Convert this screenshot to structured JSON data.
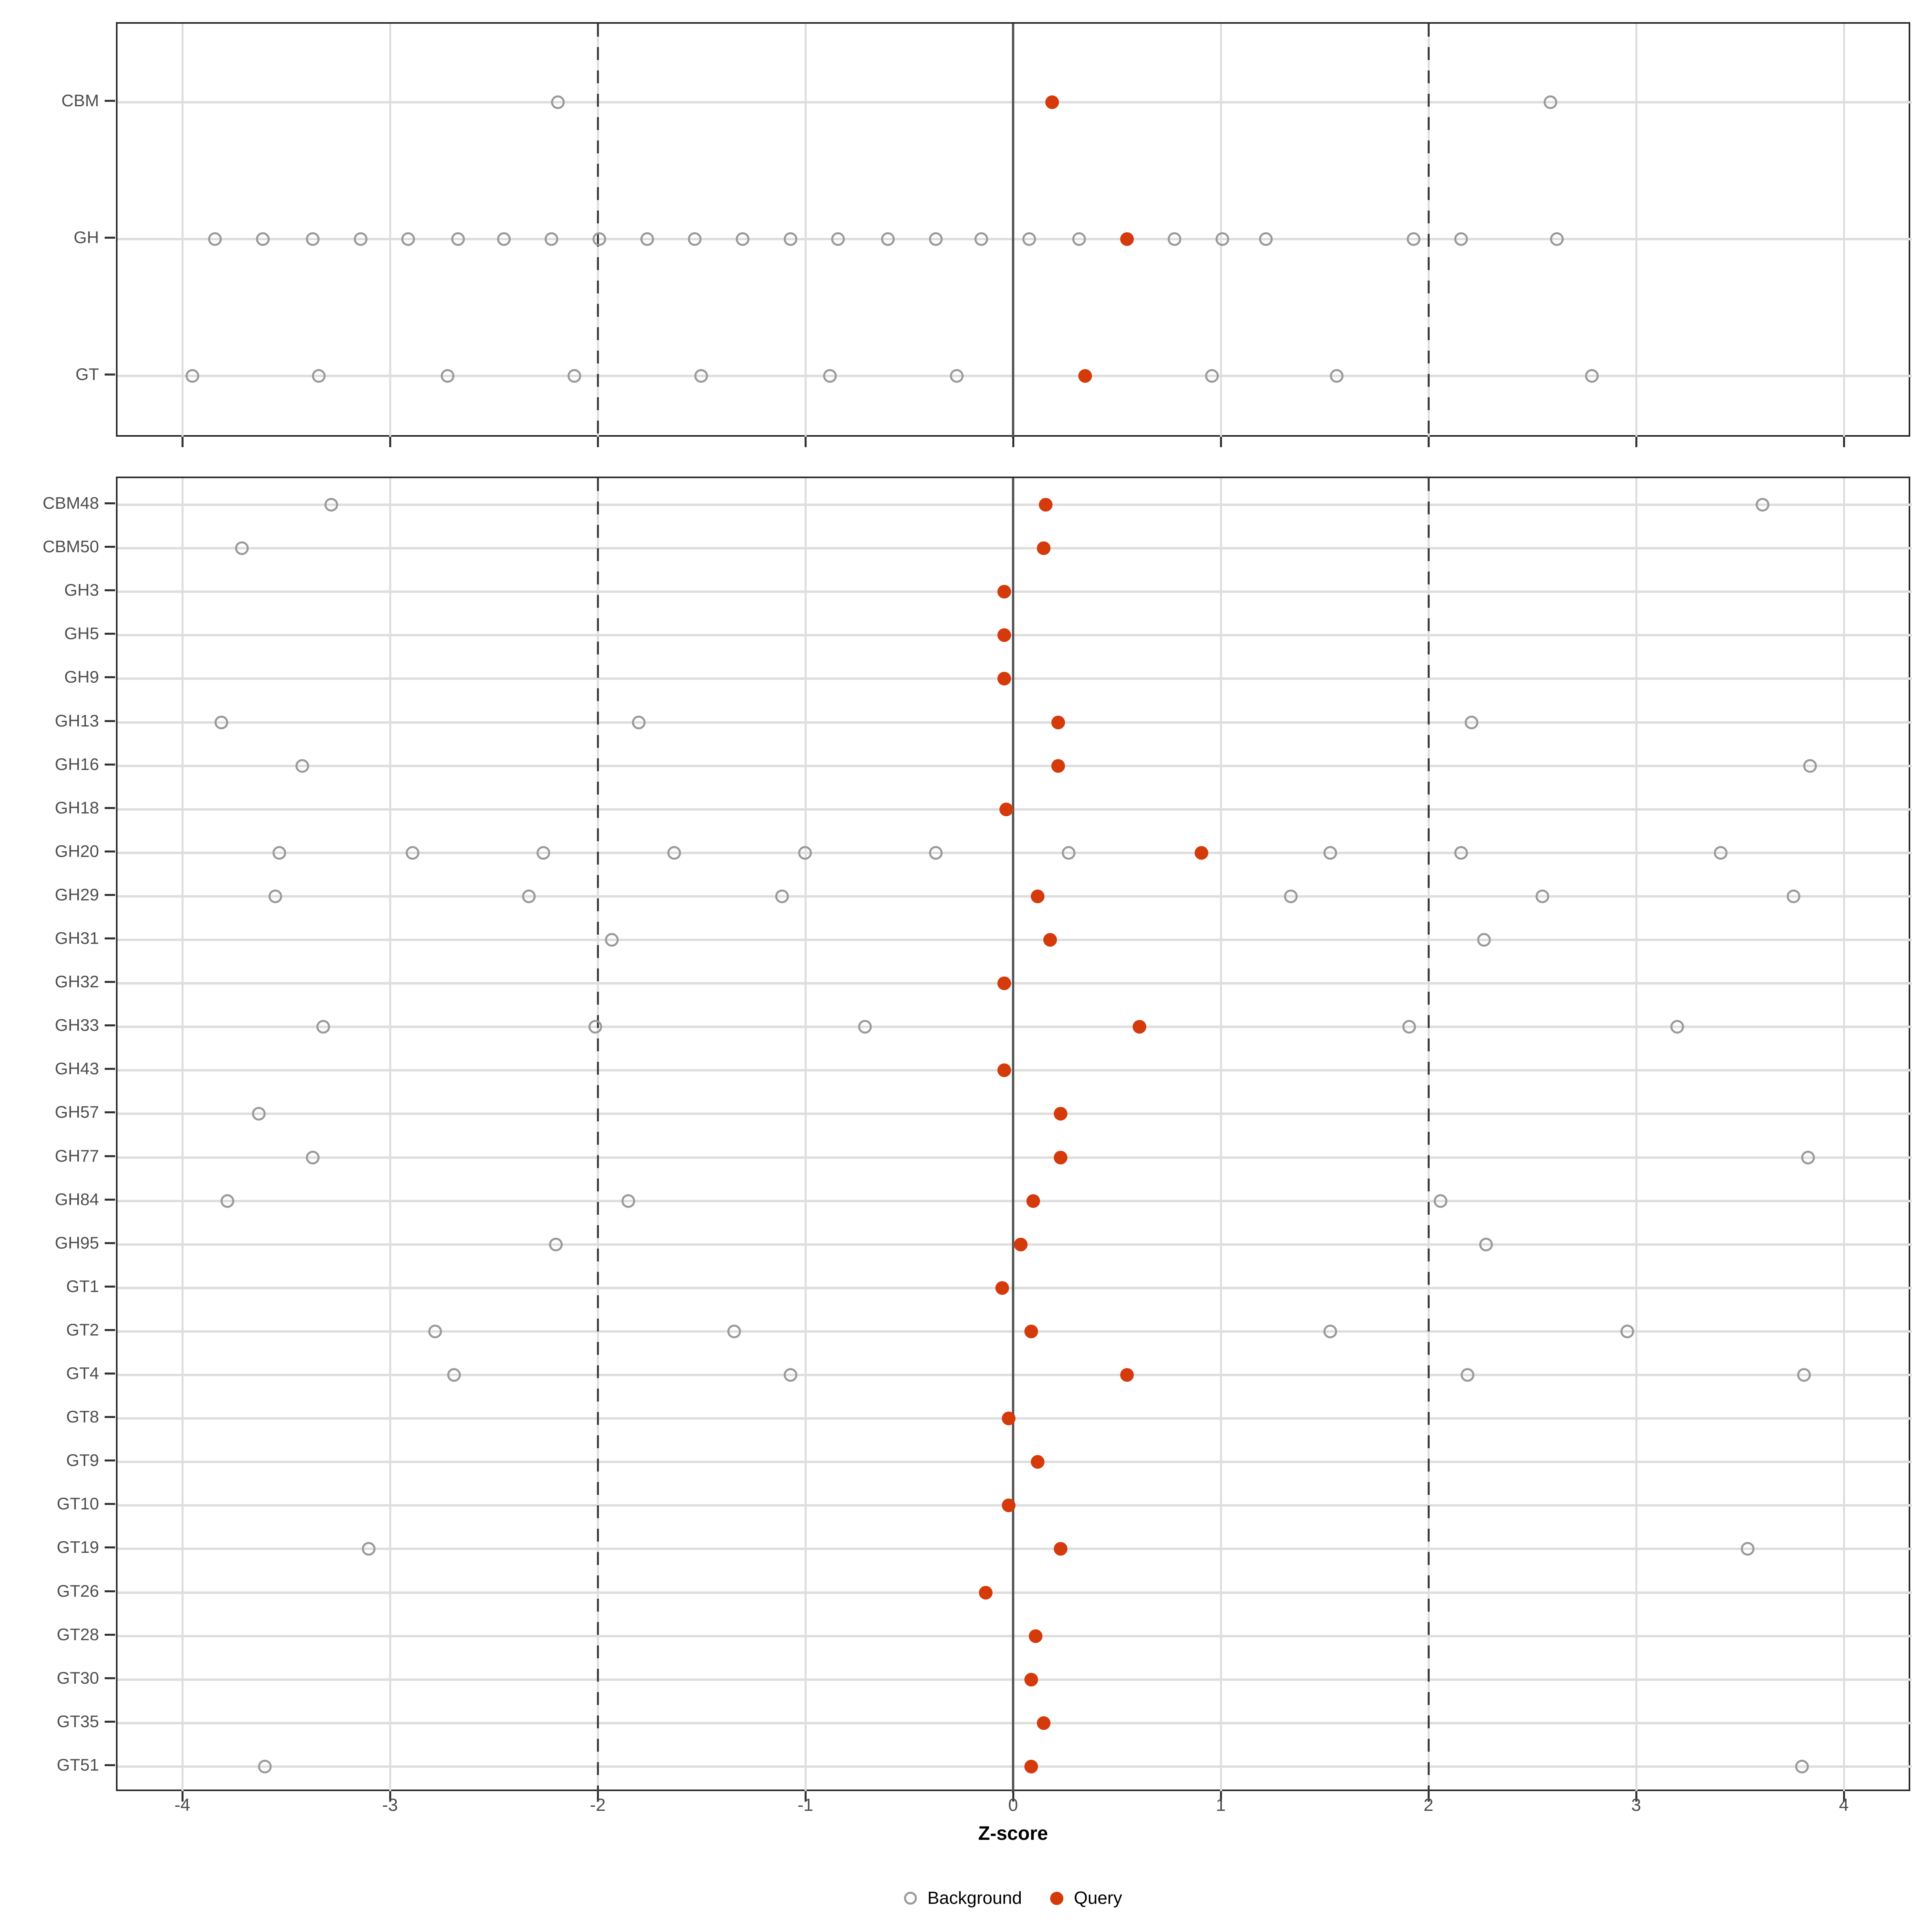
{
  "chart_data": {
    "type": "scatter",
    "title": "",
    "xlabel": "Z-score",
    "ylabel": "",
    "xlim": [
      -4.32,
      4.32
    ],
    "x_ticks": [
      -4,
      -3,
      -2,
      -1,
      0,
      1,
      2,
      3,
      4
    ],
    "grid": "on",
    "reference_lines": {
      "solid_at": 0,
      "dashed_at": [
        -2,
        2
      ]
    },
    "colors": {
      "query": "#d53a0b",
      "background_stroke": "#9a9a9a",
      "grid": "#dedede",
      "zero_line": "#595959",
      "dashed_line": "#3f3f3f",
      "axis_text": "#4d4d4d",
      "panel_border": "#2b2b2b"
    },
    "legend_position": "bottom",
    "panels": [
      {
        "id": "top",
        "rows": [
          {
            "label": "CBM",
            "background": [
              -2.2,
              2.58
            ],
            "query": 0.18
          },
          {
            "label": "GH",
            "background": [
              -3.85,
              -3.62,
              -3.38,
              -3.15,
              -2.92,
              -2.68,
              -2.46,
              -2.23,
              -2.0,
              -1.77,
              -1.54,
              -1.31,
              -1.08,
              -0.85,
              -0.61,
              -0.38,
              -0.16,
              0.07,
              0.31,
              0.77,
              1.0,
              1.21,
              1.92,
              2.15,
              2.61
            ],
            "query": 0.54
          },
          {
            "label": "GT",
            "background": [
              -3.96,
              -3.35,
              -2.73,
              -2.12,
              -1.51,
              -0.89,
              -0.28,
              0.95,
              1.55,
              2.78
            ],
            "query": 0.34
          }
        ]
      },
      {
        "id": "bottom",
        "rows": [
          {
            "label": "CBM48",
            "background": [
              -3.29,
              3.6
            ],
            "query": 0.15
          },
          {
            "label": "CBM50",
            "background": [
              -3.72
            ],
            "query": 0.14
          },
          {
            "label": "GH3",
            "background": [],
            "query": -0.05
          },
          {
            "label": "GH5",
            "background": [],
            "query": -0.05
          },
          {
            "label": "GH9",
            "background": [],
            "query": -0.05
          },
          {
            "label": "GH13",
            "background": [
              -3.82,
              -1.81,
              2.2
            ],
            "query": 0.21
          },
          {
            "label": "GH16",
            "background": [
              -3.43,
              3.83
            ],
            "query": 0.21
          },
          {
            "label": "GH18",
            "background": [],
            "query": -0.04
          },
          {
            "label": "GH20",
            "background": [
              -3.54,
              -2.9,
              -2.27,
              -1.64,
              -1.01,
              -0.38,
              0.26,
              1.52,
              2.15,
              3.4
            ],
            "query": 0.9
          },
          {
            "label": "GH29",
            "background": [
              -3.56,
              -2.34,
              -1.12,
              1.33,
              2.54,
              3.75
            ],
            "query": 0.11
          },
          {
            "label": "GH31",
            "background": [
              -1.94,
              2.26
            ],
            "query": 0.17
          },
          {
            "label": "GH32",
            "background": [],
            "query": -0.05
          },
          {
            "label": "GH33",
            "background": [
              -3.33,
              -2.02,
              -0.72,
              1.9,
              3.19
            ],
            "query": 0.6
          },
          {
            "label": "GH43",
            "background": [],
            "query": -0.05
          },
          {
            "label": "GH57",
            "background": [
              -3.64
            ],
            "query": 0.22
          },
          {
            "label": "GH77",
            "background": [
              -3.38,
              3.82
            ],
            "query": 0.22
          },
          {
            "label": "GH84",
            "background": [
              -3.79,
              -1.86,
              2.05
            ],
            "query": 0.09
          },
          {
            "label": "GH95",
            "background": [
              -2.21,
              2.27
            ],
            "query": 0.03
          },
          {
            "label": "GT1",
            "background": [],
            "query": -0.06
          },
          {
            "label": "GT2",
            "background": [
              -2.79,
              -1.35,
              1.52,
              2.95
            ],
            "query": 0.08
          },
          {
            "label": "GT4",
            "background": [
              -2.7,
              -1.08,
              2.18,
              3.8
            ],
            "query": 0.54
          },
          {
            "label": "GT8",
            "background": [],
            "query": -0.03
          },
          {
            "label": "GT9",
            "background": [],
            "query": 0.11
          },
          {
            "label": "GT10",
            "background": [],
            "query": -0.03
          },
          {
            "label": "GT19",
            "background": [
              -3.11,
              3.53
            ],
            "query": 0.22
          },
          {
            "label": "GT26",
            "background": [],
            "query": -0.14
          },
          {
            "label": "GT28",
            "background": [],
            "query": 0.1
          },
          {
            "label": "GT30",
            "background": [],
            "query": 0.08
          },
          {
            "label": "GT35",
            "background": [],
            "query": 0.14
          },
          {
            "label": "GT51",
            "background": [
              -3.61,
              3.79
            ],
            "query": 0.08
          }
        ]
      }
    ],
    "legend": {
      "items": [
        {
          "key": "background",
          "label": "Background"
        },
        {
          "key": "query",
          "label": "Query"
        }
      ]
    }
  }
}
